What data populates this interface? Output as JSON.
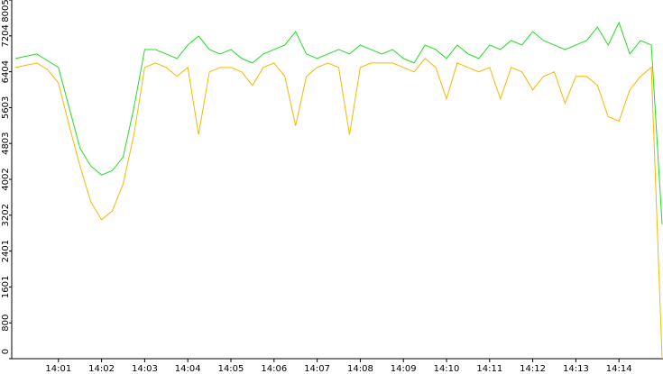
{
  "chart_data": {
    "type": "line",
    "categories": [
      null,
      null,
      null,
      null,
      "14:01",
      null,
      null,
      null,
      "14:02",
      null,
      null,
      null,
      "14:03",
      null,
      null,
      null,
      "14:04",
      null,
      null,
      null,
      "14:05",
      null,
      null,
      null,
      "14:06",
      null,
      null,
      null,
      "14:07",
      null,
      null,
      null,
      "14:08",
      null,
      null,
      null,
      "14:09",
      null,
      null,
      null,
      "14:10",
      null,
      null,
      null,
      "14:11",
      null,
      null,
      null,
      "14:12",
      null,
      null,
      null,
      "14:13",
      null,
      null,
      null,
      "14:14",
      null,
      null,
      null,
      null
    ],
    "series": [
      {
        "color": "#22dd22",
        "values": [
          6700,
          6750,
          6800,
          6650,
          6500,
          5600,
          4700,
          4300,
          4100,
          4200,
          4500,
          5600,
          6900,
          6900,
          6800,
          6700,
          7000,
          7200,
          6900,
          6800,
          6900,
          6700,
          6600,
          6800,
          6900,
          7000,
          7300,
          6800,
          6700,
          6800,
          6900,
          6800,
          7000,
          6900,
          6800,
          6900,
          6700,
          6600,
          7000,
          6900,
          6700,
          7000,
          6800,
          6700,
          7000,
          6900,
          7100,
          7000,
          7300,
          7100,
          7000,
          6900,
          7000,
          7100,
          7400,
          7000,
          7500,
          6800,
          7100,
          7000,
          3000
        ]
      },
      {
        "color": "#f5b800",
        "values": [
          6500,
          6550,
          6600,
          6450,
          6150,
          5200,
          4300,
          3500,
          3100,
          3300,
          3900,
          5000,
          6500,
          6600,
          6500,
          6300,
          6500,
          5000,
          6400,
          6500,
          6500,
          6400,
          6100,
          6500,
          6600,
          6300,
          5200,
          6300,
          6500,
          6600,
          6500,
          5000,
          6500,
          6600,
          6600,
          6600,
          6500,
          6400,
          6700,
          6500,
          5800,
          6600,
          6500,
          6400,
          6500,
          5800,
          6500,
          6400,
          6000,
          6300,
          6400,
          5700,
          6300,
          6300,
          6100,
          5400,
          5300,
          6000,
          6300,
          6500,
          0
        ]
      }
    ],
    "ylim": [
      0,
      8005
    ],
    "yticks": [
      0,
      800,
      1601,
      2401,
      3202,
      4002,
      4803,
      5603,
      6404,
      7204,
      8005
    ],
    "grid": false
  }
}
